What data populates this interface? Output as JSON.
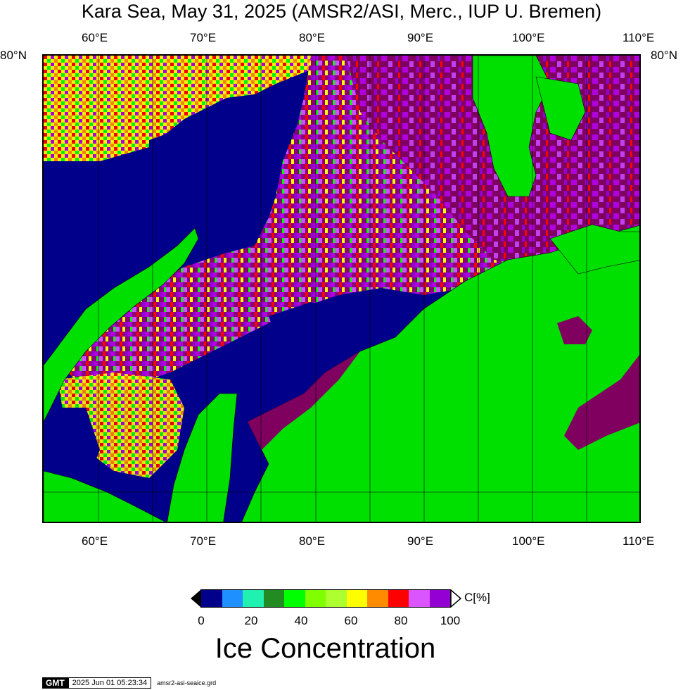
{
  "title": "Kara Sea, May 31, 2025 (AMSR2/ASI, Merc., IUP U. Bremen)",
  "top_axis": [
    "60°E",
    "70°E",
    "80°E",
    "90°E",
    "100°E",
    "110°E"
  ],
  "bottom_axis": [
    "60°E",
    "70°E",
    "80°E",
    "90°E",
    "100°E",
    "110°E"
  ],
  "lat_label_left": "80°N",
  "lat_label_right": "80°N",
  "colorbar": {
    "colors": [
      "#00008b",
      "#1e90ff",
      "#20f0b0",
      "#228b22",
      "#00ff00",
      "#7fff00",
      "#adff2f",
      "#ffff00",
      "#ff8c00",
      "#ff0000",
      "#da55ff",
      "#9400d3"
    ],
    "ticks": [
      "0",
      "20",
      "40",
      "60",
      "80",
      "100"
    ],
    "unit": "C[%]",
    "label": "Ice Concentration"
  },
  "footer": {
    "logo": "GMT",
    "timestamp": "2025 Jun 01 05:23:34",
    "filename": "amsr2-asi-seaice.grd"
  },
  "map_colors": {
    "water": "#00008b",
    "land": "#00e000",
    "ice_high": "#800060",
    "ice_mid": "#b000e0"
  }
}
